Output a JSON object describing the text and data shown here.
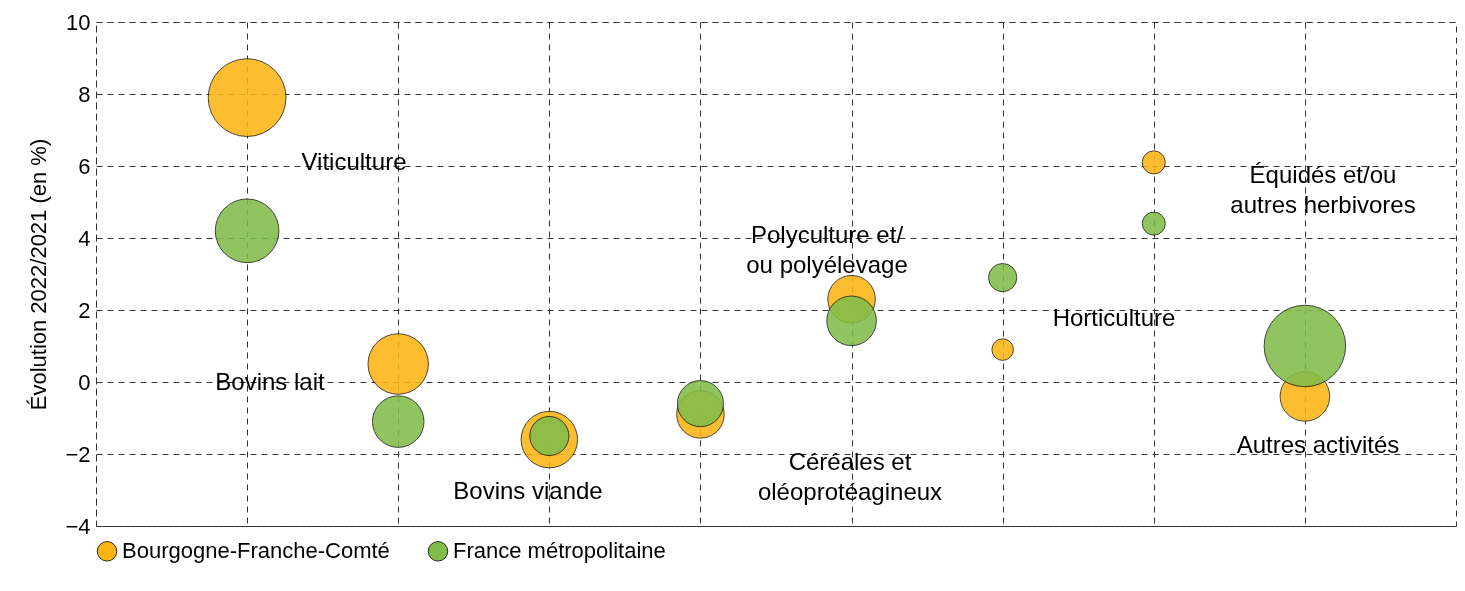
{
  "chart_data": {
    "type": "bubble",
    "ylabel": "Évolution 2022/2021 (en %)",
    "categories": [
      null,
      null,
      null,
      null,
      null,
      null,
      null,
      null
    ],
    "series": [
      {
        "name": "Bourgogne-Franche-Comté",
        "color": "#fdb515",
        "values": [
          7.9,
          0.5,
          -1.6,
          -0.9,
          2.3,
          0.9,
          6.1,
          -0.4
        ],
        "sizes": [
          0.91,
          0.55,
          0.48,
          0.34,
          0.34,
          0.07,
          0.08,
          0.37
        ]
      },
      {
        "name": "France métropolitaine",
        "color": "#82bd4b",
        "values": [
          4.2,
          -1.1,
          -1.5,
          -0.6,
          1.7,
          2.9,
          4.4,
          1.0
        ],
        "sizes": [
          0.61,
          0.4,
          0.23,
          0.32,
          0.37,
          0.12,
          0.08,
          1
        ]
      }
    ],
    "ylim": [
      -4,
      10
    ],
    "yticks": [
      -4,
      -2,
      0,
      2,
      4,
      6,
      8,
      10
    ],
    "grid": true,
    "legend": "bottom",
    "tick_labels": "y",
    "annotations": [
      "Viticulture",
      "Bovins lait",
      "Bovins viande",
      "Céréales et\noléoprotéagineux",
      "Polyculture et/\nou  polyélevage",
      "Horticulture",
      "Équidés et/ou\nautres herbivores",
      "Autres activités"
    ]
  }
}
